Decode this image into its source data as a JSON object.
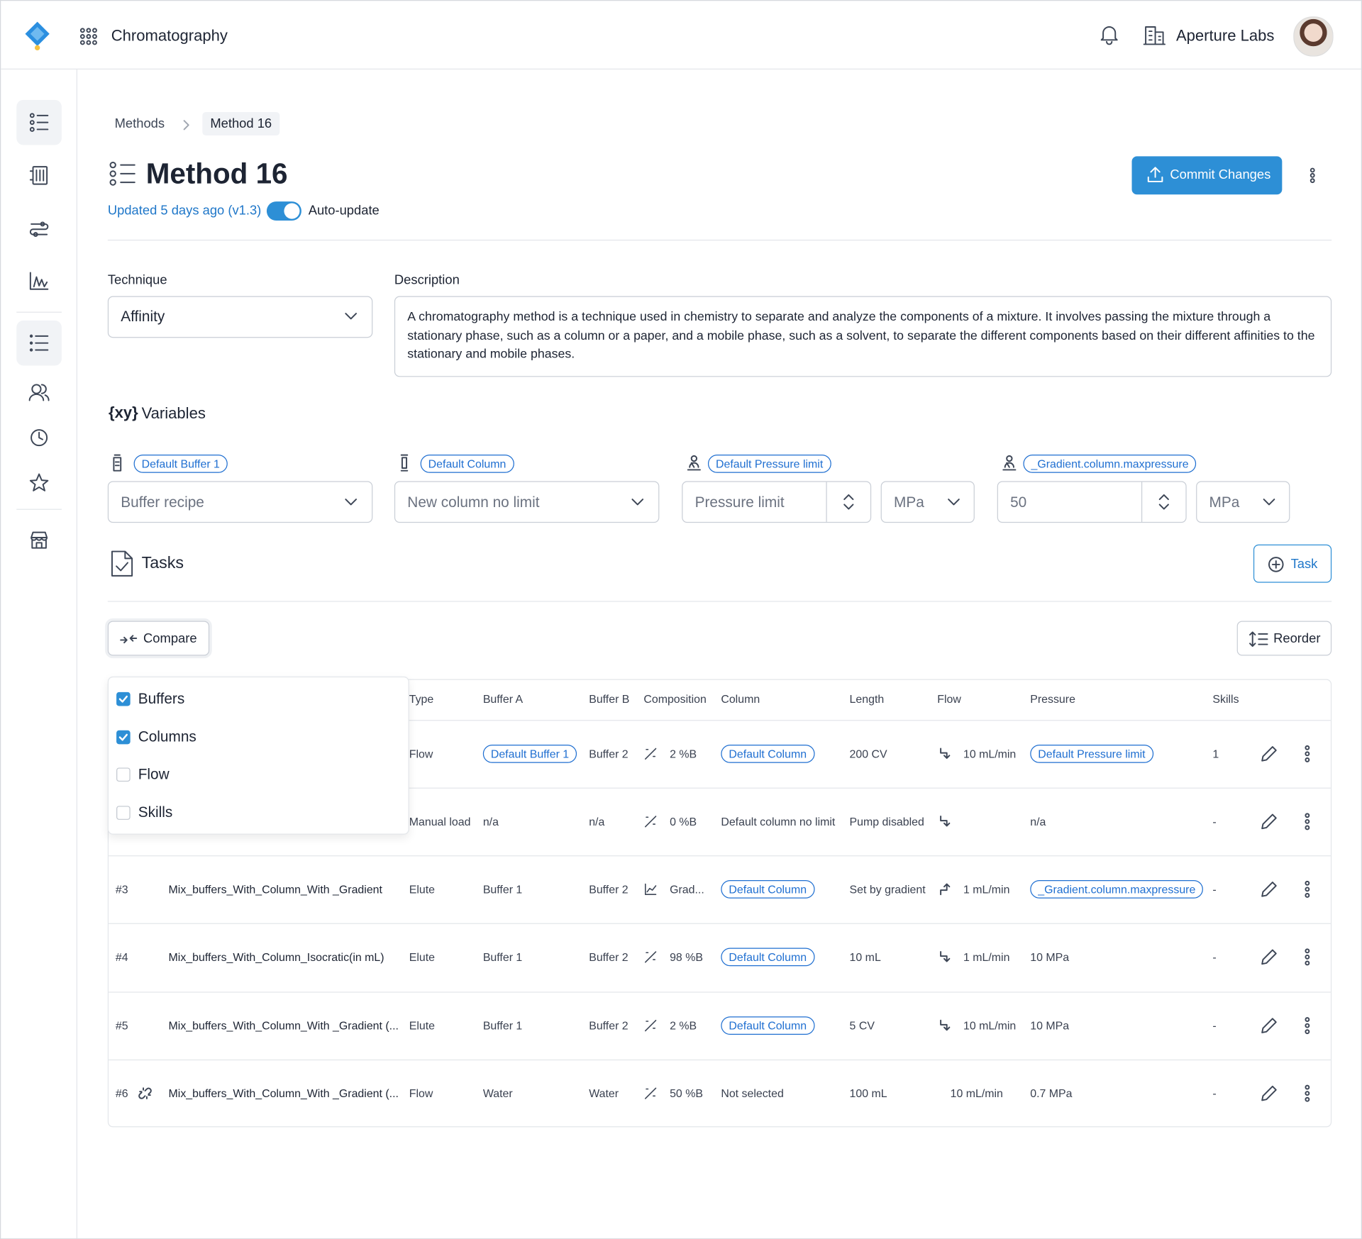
{
  "header": {
    "app": "Chromatography",
    "org": "Aperture Labs"
  },
  "breadcrumb": [
    "Methods",
    "Method 16"
  ],
  "title": "Method 16",
  "updated": "Updated 5 days ago (v1.3)",
  "auto_update": "Auto-update",
  "commit": "Commit Changes",
  "technique": {
    "label": "Technique",
    "value": "Affinity"
  },
  "description": {
    "label": "Description",
    "text": "A chromatography method is a technique used in chemistry to separate and analyze the components of a mixture. It involves passing the mixture through a stationary phase, such as a column or a paper, and a mobile phase, such as a solvent, to separate the different components based on their different affinities to the stationary and mobile phases."
  },
  "variables": {
    "icon": "{xy}",
    "title": "Variables",
    "items": [
      {
        "tag": "Default Buffer 1",
        "value": "Buffer recipe"
      },
      {
        "tag": "Default Column",
        "value": "New column no limit"
      },
      {
        "tag": "Default Pressure limit",
        "value": "Pressure limit",
        "unit": "MPa"
      },
      {
        "tag": "_Gradient.column.maxpressure",
        "value": "50",
        "unit": "MPa"
      }
    ]
  },
  "tasks": {
    "title": "Tasks",
    "add": "Task",
    "compare": "Compare",
    "reorder": "Reorder",
    "compare_options": [
      {
        "label": "Buffers",
        "checked": true
      },
      {
        "label": "Columns",
        "checked": true
      },
      {
        "label": "Flow",
        "checked": false
      },
      {
        "label": "Skills",
        "checked": false
      }
    ],
    "columns": {
      "type": "Type",
      "buffer_a": "Buffer A",
      "buffer_b": "Buffer B",
      "composition": "Composition",
      "column": "Column",
      "length": "Length",
      "flow": "Flow",
      "pressure": "Pressure",
      "skills": "Skills"
    },
    "rows": [
      {
        "type": "Flow",
        "buffer_a": "Default Buffer 1",
        "buffer_b": "Buffer 2",
        "composition": "2 %B",
        "column": "Default Column",
        "length": "200 CV",
        "flow": "10 mL/min",
        "pressure": "Default Pressure limit",
        "skills": "1"
      },
      {
        "type": "Manual load",
        "buffer_a": "n/a",
        "buffer_b": "n/a",
        "composition": "0 %B",
        "column": "Default column no limit",
        "length": "Pump disabled",
        "pressure": "n/a",
        "skills": "-"
      },
      {
        "id": "#3",
        "name": "Mix_buffers_With_Column_With _Gradient",
        "type": "Elute",
        "buffer_a": "Buffer 1",
        "buffer_b": "Buffer 2",
        "composition": "Grad...",
        "column": "Default Column",
        "length": "Set by gradient",
        "flow": "1 mL/min",
        "pressure": "_Gradient.column.maxpressure",
        "skills": "-"
      },
      {
        "id": "#4",
        "name": "Mix_buffers_With_Column_Isocratic(in mL)",
        "type": "Elute",
        "buffer_a": "Buffer 1",
        "buffer_b": "Buffer 2",
        "composition": "98 %B",
        "column": "Default Column",
        "length": "10 mL",
        "flow": "1 mL/min",
        "pressure": "10 MPa",
        "skills": "-"
      },
      {
        "id": "#5",
        "name": "Mix_buffers_With_Column_With _Gradient (...",
        "type": "Elute",
        "buffer_a": "Buffer 1",
        "buffer_b": "Buffer 2",
        "composition": "2 %B",
        "column": "Default Column",
        "length": "5 CV",
        "flow": "10 mL/min",
        "pressure": "10 MPa",
        "skills": "-"
      },
      {
        "id": "#6",
        "name": "Mix_buffers_With_Column_With _Gradient (...",
        "type": "Flow",
        "buffer_a": "Water",
        "buffer_b": "Water",
        "composition": "50 %B",
        "column": "Not selected",
        "length": "100 mL",
        "flow": "10 mL/min",
        "pressure": "0.7 MPa",
        "skills": "-"
      }
    ]
  }
}
